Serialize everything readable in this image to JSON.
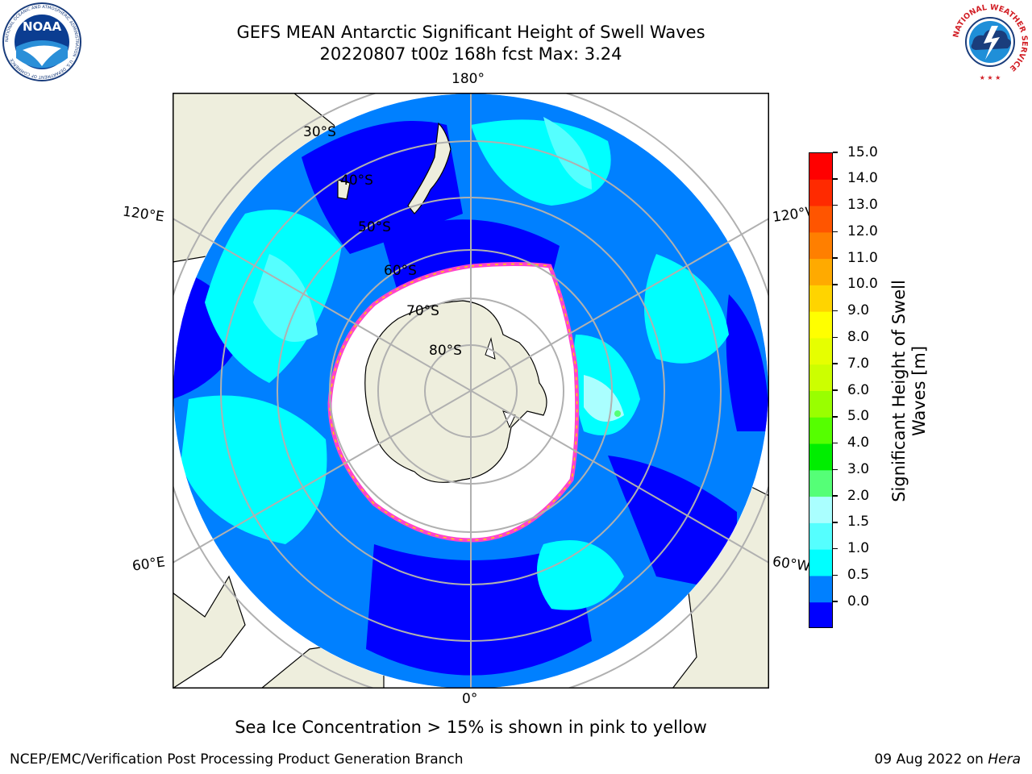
{
  "title_line1": "GEFS MEAN Antarctic Significant Height of Swell Waves",
  "title_line2": "20220807 t00z 168h fcst   Max: 3.24",
  "noaa_logo": {
    "text": "NOAA",
    "ring_text": "NATIONAL OCEANIC AND ATMOSPHERIC ADMINISTRATION · U.S. DEPARTMENT OF COMMERCE"
  },
  "nws_logo": {
    "ring_text": "NATIONAL WEATHER SERVICE"
  },
  "map": {
    "projection": "south-polar-stereographic",
    "longitude_labels": {
      "top": "180°",
      "bottom": "0°",
      "left_upper": "120°E",
      "left_lower": "60°E",
      "right_upper": "120°W",
      "right_lower": "60°W"
    },
    "latitude_labels": [
      "30°S",
      "40°S",
      "50°S",
      "60°S",
      "70°S",
      "80°S"
    ],
    "colors": {
      "land": "#eeeedd",
      "ice_edge": "#ff44cc",
      "ice_inner": "#ffffff",
      "grid": "#b0b0b0"
    }
  },
  "colorbar": {
    "label_line1": "Significant Height of Swell",
    "label_line2": "Waves [m]",
    "ticks": [
      "15.0",
      "14.0",
      "13.0",
      "12.0",
      "11.0",
      "10.0",
      "9.0",
      "8.0",
      "7.0",
      "6.0",
      "5.0",
      "4.0",
      "3.0",
      "2.0",
      "1.5",
      "1.0",
      "0.5",
      "0.0"
    ],
    "bin_colors_top_to_bottom": [
      "#ff0000",
      "#ff2a00",
      "#ff5500",
      "#ff7f00",
      "#ffaa00",
      "#ffd400",
      "#ffff00",
      "#e6ff00",
      "#ccff00",
      "#99ff00",
      "#55ff00",
      "#00ee00",
      "#55ff77",
      "#aaffff",
      "#55ffff",
      "#00ffff",
      "#0080ff",
      "#0000ff"
    ]
  },
  "caption": "Sea Ice Concentration > 15% is shown in pink to yellow",
  "footer_left": "NCEP/EMC/Verification Post Processing Product Generation Branch",
  "footer_right_date": "09 Aug 2022 on",
  "footer_right_host": "Hera"
}
